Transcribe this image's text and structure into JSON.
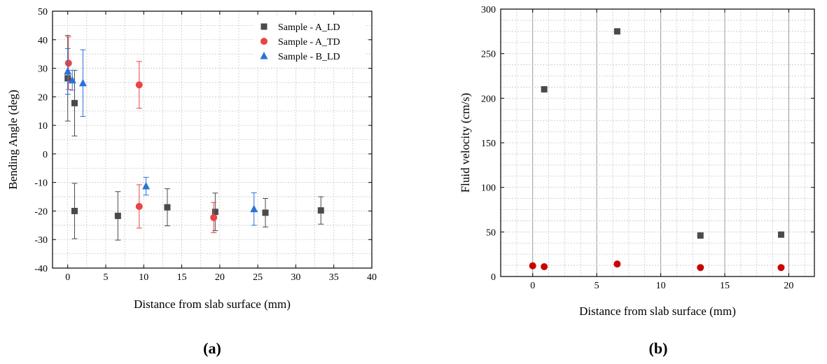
{
  "chart_data": [
    {
      "type": "scatter",
      "panel_label": "(a)",
      "xlabel": "Distance from slab surface (mm)",
      "ylabel": "Bending Angle (deg)",
      "xlim": [
        -2,
        40
      ],
      "ylim": [
        -40,
        50
      ],
      "xticks": [
        0,
        5,
        10,
        15,
        20,
        25,
        30,
        35,
        40
      ],
      "yticks": [
        -40,
        -30,
        -20,
        -10,
        0,
        10,
        20,
        30,
        40,
        50
      ],
      "grid": "dotted",
      "legend_position": "top-right",
      "error_bars": true,
      "series": [
        {
          "name": "Sample - A_LD",
          "marker": "square",
          "color": "#4a4a4a",
          "points": [
            {
              "x": 0.0,
              "y": 26.5,
              "err": 15.0
            },
            {
              "x": 0.9,
              "y": 17.8,
              "err": 11.5
            },
            {
              "x": 0.9,
              "y": -20.0,
              "err": 9.7
            },
            {
              "x": 6.6,
              "y": -21.7,
              "err": 8.5
            },
            {
              "x": 13.1,
              "y": -18.7,
              "err": 6.5
            },
            {
              "x": 19.4,
              "y": -20.3,
              "err": 6.6
            },
            {
              "x": 26.0,
              "y": -20.6,
              "err": 5.0
            },
            {
              "x": 33.3,
              "y": -19.8,
              "err": 4.8
            }
          ]
        },
        {
          "name": "Sample - A_TD",
          "marker": "circle",
          "color": "#e84545",
          "points": [
            {
              "x": 0.1,
              "y": 31.8,
              "err": 9.2
            },
            {
              "x": 9.4,
              "y": 24.2,
              "err": 8.2
            },
            {
              "x": 9.4,
              "y": -18.4,
              "err": 7.6
            },
            {
              "x": 19.2,
              "y": -22.3,
              "err": 5.3
            }
          ]
        },
        {
          "name": "Sample - B_LD",
          "marker": "triangle",
          "color": "#2a72d6",
          "points": [
            {
              "x": 0.0,
              "y": 28.9,
              "err": 8.0
            },
            {
              "x": 0.6,
              "y": 25.8,
              "err": 3.5
            },
            {
              "x": 2.0,
              "y": 24.8,
              "err": 11.7
            },
            {
              "x": 10.3,
              "y": -11.3,
              "err": 3.1
            },
            {
              "x": 24.5,
              "y": -19.3,
              "err": 5.7
            }
          ]
        }
      ]
    },
    {
      "type": "scatter",
      "panel_label": "(b)",
      "xlabel": "Distance from slab surface (mm)",
      "ylabel": "Fluid velocity (cm/s)",
      "xlim": [
        -2.5,
        22
      ],
      "ylim": [
        0,
        300
      ],
      "xticks": [
        0,
        5,
        10,
        15,
        20
      ],
      "yticks": [
        0,
        50,
        100,
        150,
        200,
        250,
        300
      ],
      "grid": "solid-major-dotted-minor",
      "legend_position": "none",
      "error_bars": false,
      "series": [
        {
          "marker": "square",
          "color": "#4a4a4a",
          "points": [
            {
              "x": 0.9,
              "y": 210
            },
            {
              "x": 6.6,
              "y": 275
            },
            {
              "x": 13.1,
              "y": 46
            },
            {
              "x": 19.4,
              "y": 47
            }
          ]
        },
        {
          "marker": "circle",
          "color": "#cc0000",
          "points": [
            {
              "x": 0.0,
              "y": 12
            },
            {
              "x": 0.9,
              "y": 11
            },
            {
              "x": 6.6,
              "y": 14
            },
            {
              "x": 13.1,
              "y": 10
            },
            {
              "x": 19.4,
              "y": 10
            }
          ]
        }
      ]
    }
  ]
}
